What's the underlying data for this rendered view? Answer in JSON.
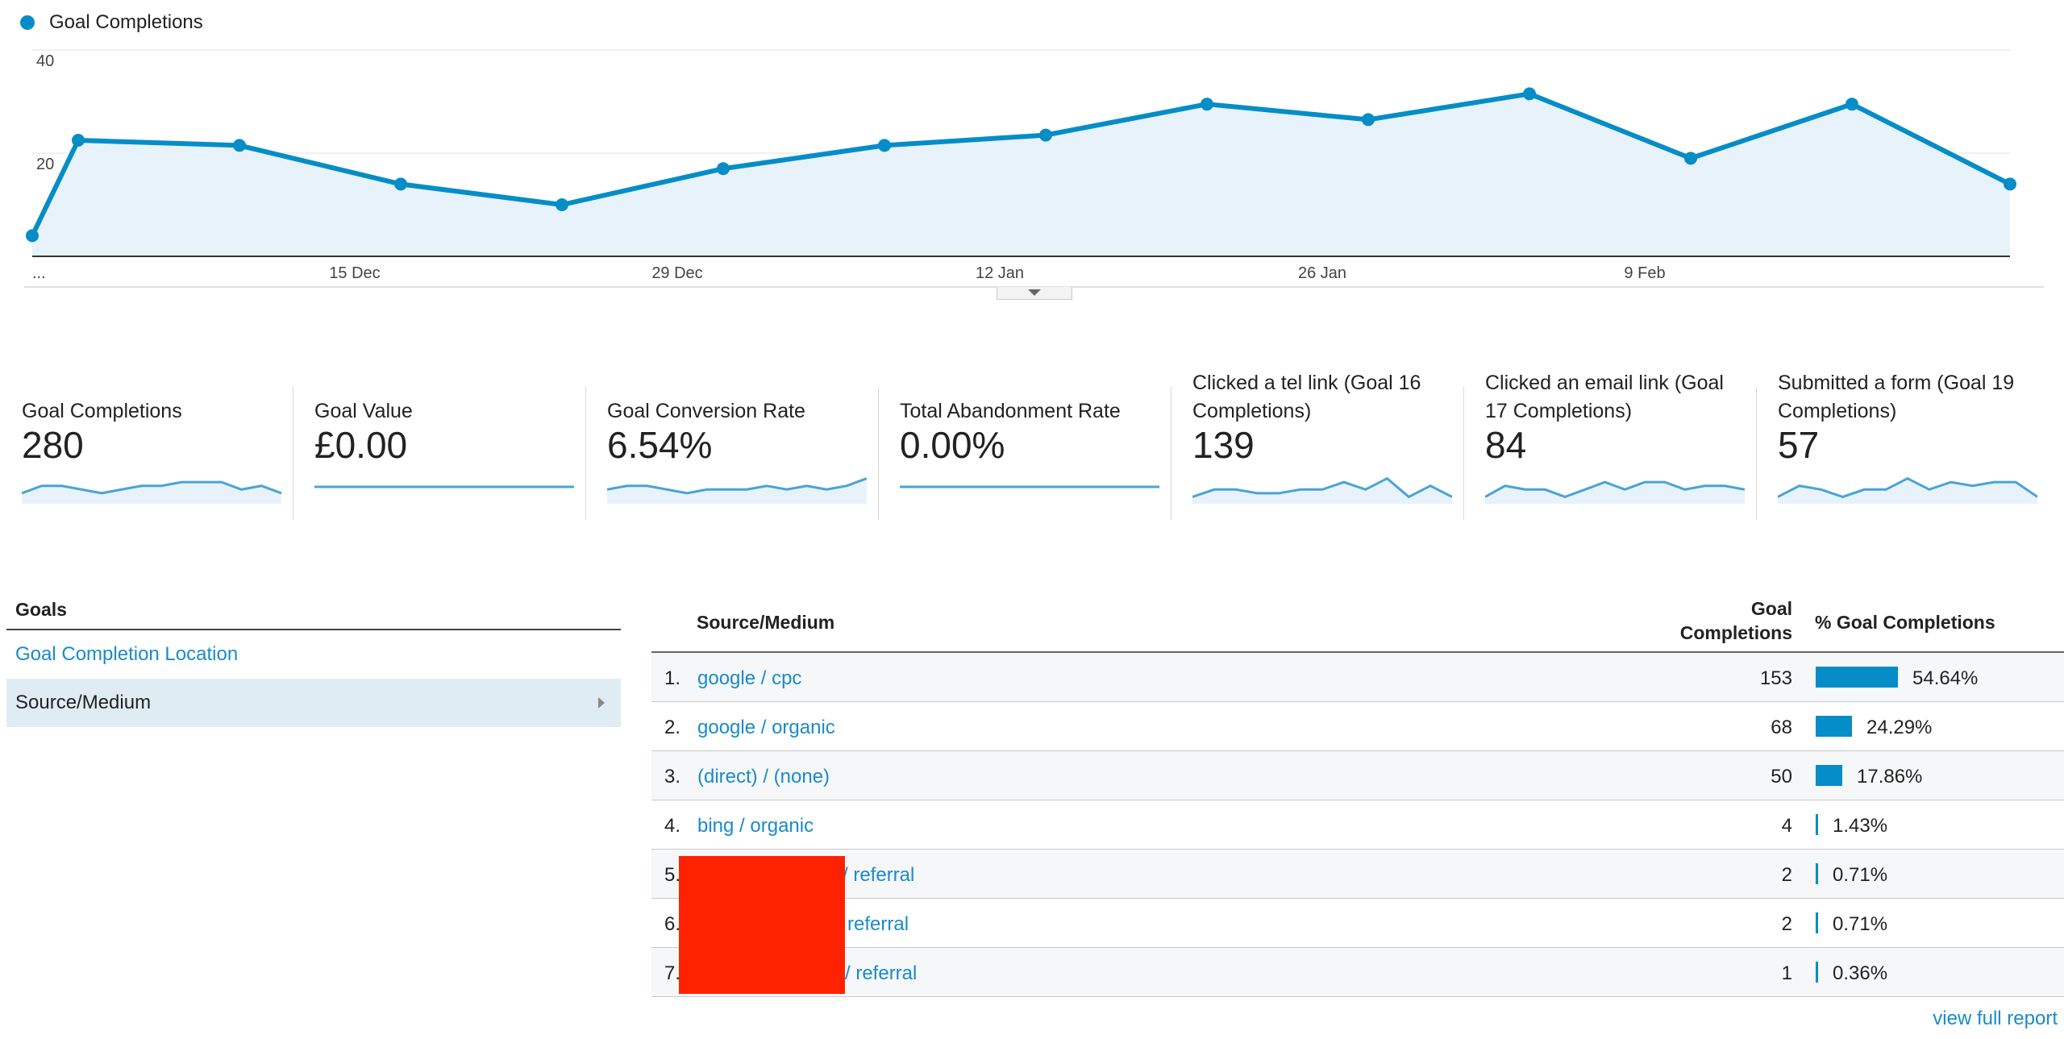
{
  "legend": {
    "label": "Goal Completions",
    "color": "#058dc7"
  },
  "chart_data": {
    "type": "line",
    "series": [
      {
        "name": "Goal Completions",
        "values": [
          4,
          22.5,
          21.5,
          14,
          10,
          17,
          21.5,
          23.5,
          29.5,
          26.5,
          31.5,
          19,
          29.5,
          14
        ]
      }
    ],
    "x_tick_labels": [
      "...",
      "15 Dec",
      "29 Dec",
      "12 Jan",
      "26 Jan",
      "9 Feb"
    ],
    "y_tick_labels": [
      "20",
      "40"
    ],
    "ylim": [
      0,
      40
    ],
    "grid": true,
    "line_color": "#058dc7",
    "fill_color": "#e8f2fa"
  },
  "scorecards": [
    {
      "label": "Goal Completions",
      "value": "280",
      "spark": [
        2,
        4,
        4,
        3,
        2,
        3,
        4,
        4,
        5,
        5,
        5,
        3,
        4,
        2
      ],
      "fill": true
    },
    {
      "label": "Goal Value",
      "value": "£0.00",
      "spark": [
        0,
        0,
        0,
        0,
        0,
        0,
        0,
        0,
        0,
        0,
        0,
        0,
        0,
        0
      ],
      "fill": false
    },
    {
      "label": "Goal Conversion Rate",
      "value": "6.54%",
      "spark": [
        3,
        4,
        4,
        3,
        2,
        3,
        3,
        3,
        4,
        3,
        4,
        3,
        4,
        6
      ],
      "fill": true
    },
    {
      "label": "Total Abandonment Rate",
      "value": "0.00%",
      "spark": [
        0,
        0,
        0,
        0,
        0,
        0,
        0,
        0,
        0,
        0,
        0,
        0,
        0,
        0
      ],
      "fill": false
    },
    {
      "label": "Clicked a tel link (Goal 16 Completions)",
      "value": "139",
      "spark": [
        1,
        3,
        3,
        2,
        2,
        3,
        3,
        5,
        3,
        6,
        1,
        4,
        1
      ],
      "fill": true
    },
    {
      "label": "Clicked an email link (Goal 17 Completions)",
      "value": "84",
      "spark": [
        1,
        4,
        3,
        3,
        1,
        3,
        5,
        3,
        5,
        5,
        3,
        4,
        4,
        3
      ],
      "fill": true
    },
    {
      "label": "Submitted a form (Goal 19 Completions)",
      "value": "57",
      "spark": [
        1,
        4,
        3,
        1,
        3,
        3,
        6,
        3,
        5,
        4,
        5,
        5,
        1
      ],
      "fill": true
    }
  ],
  "goals": {
    "title": "Goals",
    "items": [
      {
        "label": "Goal Completion Location",
        "active": false
      },
      {
        "label": "Source/Medium",
        "active": true
      }
    ]
  },
  "table": {
    "headers": {
      "source": "Source/Medium",
      "completions_line1": "Goal",
      "completions_line2": "Completions",
      "pct": "% Goal Completions"
    },
    "rows": [
      {
        "idx": "1.",
        "source": "google / cpc",
        "completions": "153",
        "pct": "54.64%",
        "share": 0.5464
      },
      {
        "idx": "2.",
        "source": "google / organic",
        "completions": "68",
        "pct": "24.29%",
        "share": 0.2429
      },
      {
        "idx": "3.",
        "source": "(direct) / (none)",
        "completions": "50",
        "pct": "17.86%",
        "share": 0.1786
      },
      {
        "idx": "4.",
        "source": "bing / organic",
        "completions": "4",
        "pct": "1.43%",
        "share": 0.0143
      },
      {
        "idx": "5.",
        "source": "/ referral",
        "completions": "2",
        "pct": "0.71%",
        "share": 0.0071
      },
      {
        "idx": "6.",
        "source": "referral",
        "completions": "2",
        "pct": "0.71%",
        "share": 0.0071
      },
      {
        "idx": "7.",
        "source": "/ referral",
        "completions": "1",
        "pct": "0.36%",
        "share": 0.0036
      }
    ]
  },
  "footer": {
    "view_full_report": "view full report"
  }
}
